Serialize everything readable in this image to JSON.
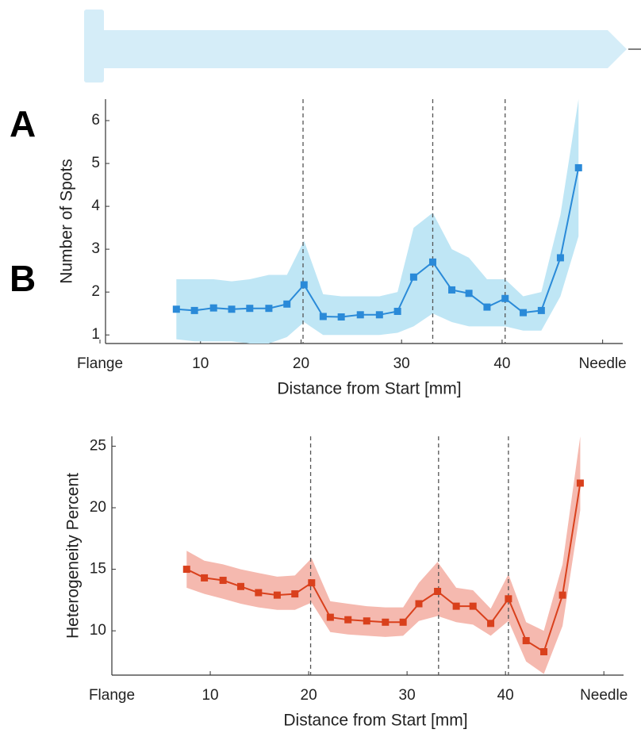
{
  "chart_data": [
    {
      "type": "line",
      "panel_label": "A",
      "xlabel": "Distance from Start [mm]",
      "ylabel": "Number of Spots",
      "xlim": [
        0,
        52
      ],
      "ylim": [
        0.8,
        6.5
      ],
      "xticks": [
        {
          "value": 0,
          "label": "Flange"
        },
        10,
        20,
        30,
        40,
        {
          "value": 50,
          "label": "Needle"
        }
      ],
      "yticks": [
        1,
        2,
        3,
        4,
        5,
        6
      ],
      "vlines": [
        20.2,
        33.1,
        40.3
      ],
      "x": [
        7.6,
        9.4,
        11.3,
        13.1,
        14.9,
        16.8,
        18.6,
        20.3,
        22.2,
        24.0,
        25.9,
        27.8,
        29.6,
        31.2,
        33.1,
        35.0,
        36.7,
        38.5,
        40.3,
        42.1,
        43.9,
        45.8,
        47.6
      ],
      "series": [
        {
          "color": "#2a8ad8",
          "band_color": "#bfe6f5",
          "values": [
            1.6,
            1.57,
            1.63,
            1.6,
            1.62,
            1.62,
            1.72,
            2.17,
            1.43,
            1.42,
            1.47,
            1.47,
            1.55,
            2.35,
            2.7,
            2.05,
            1.97,
            1.65,
            1.85,
            1.52,
            1.57,
            2.8,
            4.9
          ],
          "lower": [
            0.9,
            0.85,
            0.85,
            0.85,
            0.8,
            0.8,
            0.95,
            1.3,
            1.0,
            1.0,
            1.0,
            1.0,
            1.05,
            1.2,
            1.5,
            1.3,
            1.2,
            1.2,
            1.2,
            1.1,
            1.1,
            1.9,
            3.3
          ],
          "upper": [
            2.3,
            2.3,
            2.3,
            2.25,
            2.3,
            2.4,
            2.4,
            3.2,
            1.95,
            1.9,
            1.9,
            1.9,
            2.0,
            3.5,
            3.85,
            3.0,
            2.8,
            2.3,
            2.3,
            1.9,
            2.0,
            3.8,
            6.5
          ]
        }
      ]
    },
    {
      "type": "line",
      "panel_label": "B",
      "xlabel": "Distance from Start [mm]",
      "ylabel": "Heterogeneity Percent",
      "xlim": [
        0,
        52
      ],
      "ylim": [
        6.4,
        25.8
      ],
      "xticks": [
        {
          "value": 0,
          "label": "Flange"
        },
        10,
        20,
        30,
        40,
        {
          "value": 50,
          "label": "Needle"
        }
      ],
      "yticks": [
        10,
        15,
        20,
        25
      ],
      "vlines": [
        20.2,
        33.2,
        40.3
      ],
      "x": [
        7.6,
        9.4,
        11.3,
        13.1,
        14.9,
        16.8,
        18.6,
        20.3,
        22.2,
        24.0,
        25.9,
        27.8,
        29.6,
        31.2,
        33.1,
        35.0,
        36.7,
        38.5,
        40.3,
        42.1,
        43.9,
        45.8,
        47.6
      ],
      "series": [
        {
          "color": "#d9401c",
          "band_color": "#f5b9af",
          "values": [
            15.0,
            14.3,
            14.1,
            13.6,
            13.1,
            12.9,
            13.0,
            13.9,
            11.1,
            10.9,
            10.8,
            10.7,
            10.7,
            12.2,
            13.2,
            12.0,
            12.0,
            10.6,
            12.6,
            9.2,
            8.3,
            12.9,
            22.0
          ],
          "lower": [
            13.5,
            13.0,
            12.6,
            12.2,
            11.9,
            11.7,
            11.7,
            12.3,
            9.9,
            9.7,
            9.6,
            9.5,
            9.6,
            10.8,
            11.2,
            10.7,
            10.5,
            9.6,
            10.8,
            7.5,
            6.5,
            10.4,
            19.8
          ],
          "upper": [
            16.5,
            15.7,
            15.4,
            15.0,
            14.7,
            14.4,
            14.5,
            15.9,
            12.4,
            12.2,
            12.0,
            11.9,
            11.9,
            13.9,
            15.6,
            13.5,
            13.3,
            11.8,
            14.6,
            10.7,
            10.0,
            15.4,
            25.8
          ]
        }
      ]
    }
  ]
}
